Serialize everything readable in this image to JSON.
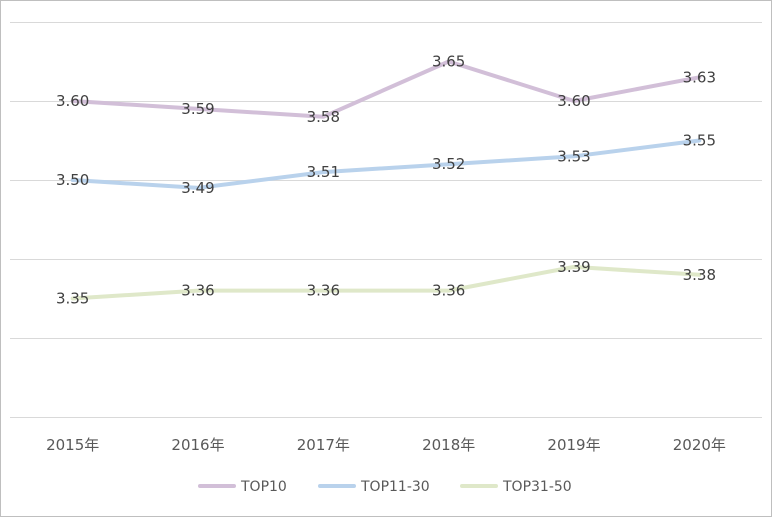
{
  "chart_data": {
    "type": "line",
    "title": "",
    "xlabel": "",
    "ylabel": "",
    "categories": [
      "2015年",
      "2016年",
      "2017年",
      "2018年",
      "2019年",
      "2020年"
    ],
    "ylim": [
      3.2,
      3.7
    ],
    "y_gridlines": [
      3.2,
      3.3,
      3.4,
      3.5,
      3.6,
      3.7
    ],
    "y_axis_labels_shown": false,
    "grid": true,
    "legend": "bottom",
    "series": [
      {
        "name": "TOP10",
        "color": "#d2bfd8",
        "values": [
          3.6,
          3.59,
          3.58,
          3.65,
          3.6,
          3.63
        ],
        "labels": [
          "3.60",
          "3.59",
          "3.58",
          "3.65",
          "3.60",
          "3.63"
        ]
      },
      {
        "name": "TOP11-30",
        "color": "#b9d2ec",
        "values": [
          3.5,
          3.49,
          3.51,
          3.52,
          3.53,
          3.55
        ],
        "labels": [
          "3.50",
          "3.49",
          "3.51",
          "3.52",
          "3.53",
          "3.55"
        ]
      },
      {
        "name": "TOP31-50",
        "color": "#dfe8c9",
        "values": [
          3.35,
          3.36,
          3.36,
          3.36,
          3.39,
          3.38
        ],
        "labels": [
          "3.35",
          "3.36",
          "3.36",
          "3.36",
          "3.39",
          "3.38"
        ]
      }
    ]
  }
}
